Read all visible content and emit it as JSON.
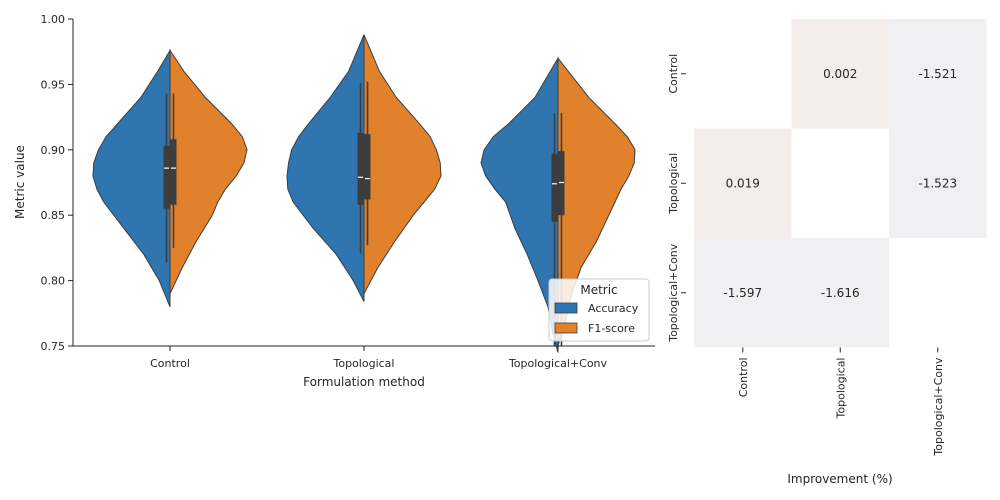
{
  "chart_data": [
    {
      "type": "violin",
      "xlabel": "Formulation method",
      "ylabel": "Metric value",
      "ylim": [
        0.75,
        1.0
      ],
      "yticks": [
        "0.75",
        "0.80",
        "0.85",
        "0.90",
        "0.95",
        "1.00"
      ],
      "categories": [
        "Control",
        "Topological",
        "Topological+Conv"
      ],
      "legend": {
        "title": "Metric",
        "placement": "lower-right",
        "entries": [
          "Accuracy",
          "F1-score"
        ]
      },
      "series": [
        {
          "name": "Accuracy",
          "color": "#2f75b0",
          "groups": [
            {
              "min": 0.78,
              "max": 0.976,
              "profile": [
                [
                  0.78,
                  0.0
                ],
                [
                  0.8,
                  0.14
                ],
                [
                  0.82,
                  0.34
                ],
                [
                  0.84,
                  0.6
                ],
                [
                  0.86,
                  0.86
                ],
                [
                  0.87,
                  0.95
                ],
                [
                  0.88,
                  1.0
                ],
                [
                  0.89,
                  0.99
                ],
                [
                  0.9,
                  0.93
                ],
                [
                  0.91,
                  0.83
                ],
                [
                  0.92,
                  0.68
                ],
                [
                  0.94,
                  0.38
                ],
                [
                  0.96,
                  0.16
                ],
                [
                  0.976,
                  0.0
                ]
              ],
              "whisker": [
                0.814,
                0.943
              ],
              "q1": 0.855,
              "median": 0.886,
              "q3": 0.903
            },
            {
              "min": 0.784,
              "max": 0.988,
              "profile": [
                [
                  0.784,
                  0.0
                ],
                [
                  0.8,
                  0.14
                ],
                [
                  0.82,
                  0.36
                ],
                [
                  0.84,
                  0.66
                ],
                [
                  0.86,
                  0.92
                ],
                [
                  0.87,
                  0.99
                ],
                [
                  0.88,
                  1.0
                ],
                [
                  0.89,
                  0.98
                ],
                [
                  0.9,
                  0.94
                ],
                [
                  0.91,
                  0.85
                ],
                [
                  0.92,
                  0.72
                ],
                [
                  0.94,
                  0.44
                ],
                [
                  0.96,
                  0.2
                ],
                [
                  0.988,
                  0.0
                ]
              ],
              "whisker": [
                0.821,
                0.951
              ],
              "q1": 0.858,
              "median": 0.879,
              "q3": 0.913
            },
            {
              "min": 0.745,
              "max": 0.97,
              "profile": [
                [
                  0.745,
                  0.0
                ],
                [
                  0.76,
                  0.07
                ],
                [
                  0.78,
                  0.13
                ],
                [
                  0.8,
                  0.26
                ],
                [
                  0.82,
                  0.4
                ],
                [
                  0.84,
                  0.56
                ],
                [
                  0.86,
                  0.68
                ],
                [
                  0.87,
                  0.82
                ],
                [
                  0.88,
                  0.94
                ],
                [
                  0.89,
                  1.0
                ],
                [
                  0.9,
                  0.96
                ],
                [
                  0.91,
                  0.84
                ],
                [
                  0.92,
                  0.64
                ],
                [
                  0.94,
                  0.3
                ],
                [
                  0.97,
                  0.0
                ]
              ],
              "whisker": [
                0.75,
                0.928
              ],
              "q1": 0.845,
              "median": 0.874,
              "q3": 0.897
            }
          ]
        },
        {
          "name": "F1-score",
          "color": "#e1812c",
          "groups": [
            {
              "min": 0.79,
              "max": 0.976,
              "profile": [
                [
                  0.79,
                  0.0
                ],
                [
                  0.81,
                  0.16
                ],
                [
                  0.83,
                  0.34
                ],
                [
                  0.85,
                  0.55
                ],
                [
                  0.86,
                  0.62
                ],
                [
                  0.87,
                  0.72
                ],
                [
                  0.88,
                  0.86
                ],
                [
                  0.89,
                  0.96
                ],
                [
                  0.9,
                  1.0
                ],
                [
                  0.91,
                  0.94
                ],
                [
                  0.92,
                  0.8
                ],
                [
                  0.94,
                  0.46
                ],
                [
                  0.96,
                  0.18
                ],
                [
                  0.976,
                  0.0
                ]
              ],
              "whisker": [
                0.825,
                0.943
              ],
              "q1": 0.858,
              "median": 0.886,
              "q3": 0.908
            },
            {
              "min": 0.79,
              "max": 0.988,
              "profile": [
                [
                  0.79,
                  0.0
                ],
                [
                  0.81,
                  0.18
                ],
                [
                  0.83,
                  0.4
                ],
                [
                  0.85,
                  0.64
                ],
                [
                  0.86,
                  0.78
                ],
                [
                  0.87,
                  0.92
                ],
                [
                  0.88,
                  1.0
                ],
                [
                  0.89,
                  0.99
                ],
                [
                  0.9,
                  0.94
                ],
                [
                  0.91,
                  0.86
                ],
                [
                  0.92,
                  0.72
                ],
                [
                  0.94,
                  0.42
                ],
                [
                  0.96,
                  0.2
                ],
                [
                  0.988,
                  0.0
                ]
              ],
              "whisker": [
                0.827,
                0.952
              ],
              "q1": 0.862,
              "median": 0.878,
              "q3": 0.912
            },
            {
              "min": 0.75,
              "max": 0.97,
              "profile": [
                [
                  0.75,
                  0.0
                ],
                [
                  0.77,
                  0.1
                ],
                [
                  0.79,
                  0.18
                ],
                [
                  0.81,
                  0.3
                ],
                [
                  0.83,
                  0.5
                ],
                [
                  0.85,
                  0.66
                ],
                [
                  0.87,
                  0.82
                ],
                [
                  0.88,
                  0.92
                ],
                [
                  0.89,
                  0.99
                ],
                [
                  0.9,
                  1.0
                ],
                [
                  0.91,
                  0.9
                ],
                [
                  0.92,
                  0.74
                ],
                [
                  0.94,
                  0.4
                ],
                [
                  0.97,
                  0.0
                ]
              ],
              "whisker": [
                0.75,
                0.928
              ],
              "q1": 0.85,
              "median": 0.875,
              "q3": 0.899
            }
          ]
        }
      ]
    },
    {
      "type": "heatmap",
      "xlabel": "Improvement (%)",
      "ylabel": "",
      "rows": [
        "Control",
        "Topological",
        "Topological+Conv"
      ],
      "columns": [
        "Control",
        "Topological",
        "Topological+Conv"
      ],
      "values": [
        [
          null,
          0.002,
          -1.521
        ],
        [
          0.019,
          null,
          -1.523
        ],
        [
          -1.597,
          -1.616,
          null
        ]
      ],
      "labels": [
        [
          "",
          "0.002",
          "-1.521"
        ],
        [
          "0.019",
          "",
          "-1.523"
        ],
        [
          "-1.597",
          "-1.616",
          ""
        ]
      ],
      "colors": {
        "positive": "#f3eeec",
        "negative": "#f0f0f2",
        "empty": "#ffffff"
      }
    }
  ]
}
